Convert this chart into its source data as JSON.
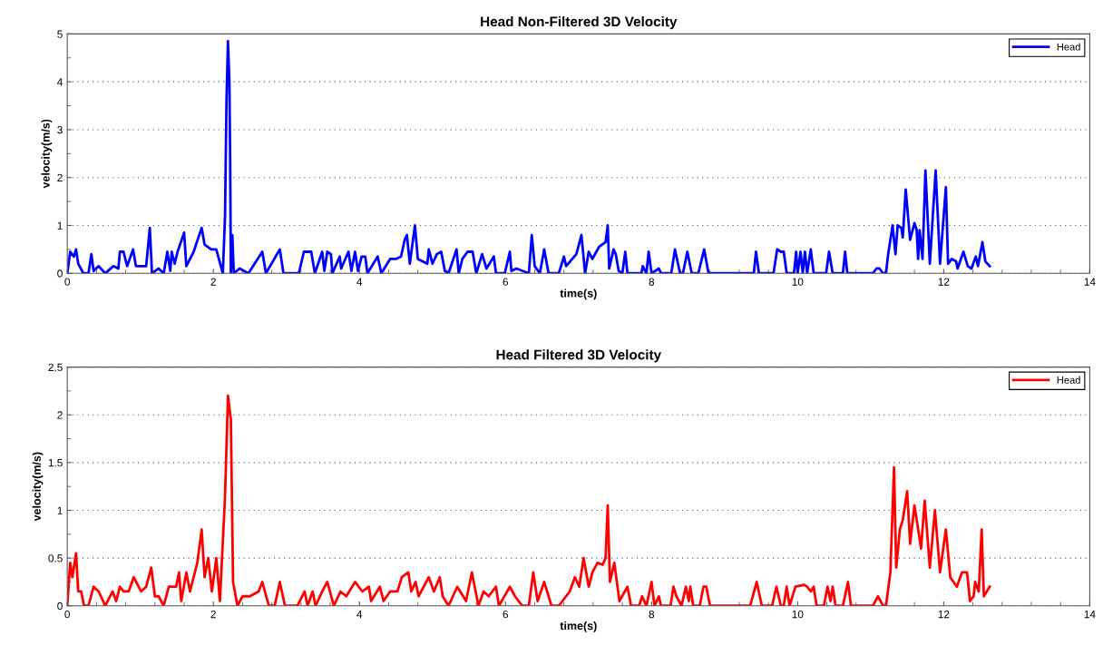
{
  "chart_data": [
    {
      "type": "line",
      "title": "Head Non-Filtered 3D Velocity",
      "xlabel": "time(s)",
      "ylabel": "velocity(m/s)",
      "grid": "y",
      "legend": "top right",
      "line_style": "solid",
      "marker": "none",
      "xlim": [
        0,
        14
      ],
      "ylim": [
        0,
        5
      ],
      "xticks": [
        0,
        {
          "value": 0.4,
          "label": null
        },
        {
          "value": 0.8,
          "label": null
        },
        {
          "value": 1.2,
          "label": null
        },
        {
          "value": 1.6,
          "label": null
        },
        2,
        {
          "value": 2.4,
          "label": null
        },
        {
          "value": 2.8,
          "label": null
        },
        {
          "value": 3.2,
          "label": null
        },
        {
          "value": 3.6,
          "label": null
        },
        4,
        {
          "value": 4.4,
          "label": null
        },
        {
          "value": 4.8,
          "label": null
        },
        {
          "value": 5.2,
          "label": null
        },
        {
          "value": 5.6,
          "label": null
        },
        6,
        {
          "value": 6.4,
          "label": null
        },
        {
          "value": 6.8,
          "label": null
        },
        {
          "value": 7.2,
          "label": null
        },
        {
          "value": 7.6,
          "label": null
        },
        8,
        {
          "value": 8.4,
          "label": null
        },
        {
          "value": 8.8,
          "label": null
        },
        {
          "value": 9.2,
          "label": null
        },
        {
          "value": 9.6,
          "label": null
        },
        10,
        {
          "value": 10.4,
          "label": null
        },
        {
          "value": 10.8,
          "label": null
        },
        {
          "value": 11.2,
          "label": null
        },
        {
          "value": 11.6,
          "label": null
        },
        12,
        {
          "value": 12.4,
          "label": null
        },
        {
          "value": 12.8,
          "label": null
        },
        {
          "value": 13.2,
          "label": null
        },
        {
          "value": 13.6,
          "label": null
        },
        14
      ],
      "yticks": [
        0,
        {
          "value": 0.5,
          "label": null
        },
        1,
        {
          "value": 1.5,
          "label": null
        },
        2,
        {
          "value": 2.5,
          "label": null
        },
        3,
        {
          "value": 3.5,
          "label": null
        },
        4,
        {
          "value": 4.5,
          "label": null
        },
        5
      ],
      "series": [
        {
          "name": "Head",
          "color": "#0000ff",
          "x": [
            0,
            0.04,
            0.09,
            0.12,
            0.15,
            0.22,
            0.29,
            0.33,
            0.36,
            0.43,
            0.52,
            0.63,
            0.7,
            0.72,
            0.77,
            0.82,
            0.9,
            0.94,
            1.08,
            1.13,
            1.16,
            1.25,
            1.32,
            1.37,
            1.41,
            1.43,
            1.47,
            1.51,
            1.6,
            1.63,
            1.73,
            1.84,
            1.88,
            1.97,
            2.04,
            2.13,
            2.16,
            2.18,
            2.2,
            2.22,
            2.23,
            2.24,
            2.26,
            2.28,
            2.36,
            2.48,
            2.67,
            2.72,
            2.91,
            2.96,
            3.17,
            3.24,
            3.34,
            3.39,
            3.49,
            3.52,
            3.56,
            3.61,
            3.63,
            3.73,
            3.75,
            3.85,
            3.89,
            3.94,
            3.98,
            4.03,
            4.08,
            4.11,
            4.25,
            4.3,
            4.42,
            4.5,
            4.57,
            4.62,
            4.65,
            4.69,
            4.76,
            4.8,
            4.93,
            4.95,
            5.0,
            5.06,
            5.12,
            5.17,
            5.22,
            5.33,
            5.36,
            5.41,
            5.48,
            5.55,
            5.6,
            5.68,
            5.74,
            5.84,
            5.87,
            5.99,
            6.06,
            6.08,
            6.15,
            6.32,
            6.36,
            6.4,
            6.47,
            6.53,
            6.59,
            6.73,
            6.8,
            6.83,
            6.97,
            7.04,
            7.09,
            7.14,
            7.19,
            7.28,
            7.37,
            7.4,
            7.42,
            7.48,
            7.51,
            7.55,
            7.6,
            7.64,
            7.67,
            7.86,
            7.88,
            7.93,
            7.96,
            8.0,
            8.1,
            8.13,
            8.27,
            8.32,
            8.39,
            8.43,
            8.49,
            8.55,
            8.64,
            8.72,
            8.78,
            9.4,
            9.43,
            9.47,
            9.67,
            9.72,
            9.77,
            9.81,
            9.85,
            9.95,
            9.98,
            10.0,
            10.04,
            10.07,
            10.1,
            10.13,
            10.18,
            10.22,
            10.39,
            10.43,
            10.48,
            10.62,
            10.65,
            10.68,
            11.03,
            11.08,
            11.12,
            11.17,
            11.21,
            11.24,
            11.3,
            11.34,
            11.37,
            11.42,
            11.44,
            11.48,
            11.54,
            11.6,
            11.63,
            11.65,
            11.67,
            11.71,
            11.75,
            11.81,
            11.89,
            11.95,
            12.03,
            12.06,
            12.11,
            12.17,
            12.19,
            12.27,
            12.33,
            12.38,
            12.44,
            12.47,
            12.53,
            12.57,
            12.63
          ],
          "values": [
            0,
            0.45,
            0.35,
            0.5,
            0.2,
            0,
            0,
            0.4,
            0.05,
            0.15,
            0,
            0.15,
            0.1,
            0.45,
            0.45,
            0.15,
            0.5,
            0.15,
            0.15,
            0.95,
            0,
            0.1,
            0,
            0.45,
            0.05,
            0.45,
            0.2,
            0.45,
            0.85,
            0.15,
            0.45,
            0.95,
            0.6,
            0.5,
            0.5,
            0,
            1.2,
            3.6,
            4.85,
            4.0,
            2.4,
            0,
            0.8,
            0,
            0.1,
            0,
            0.45,
            0,
            0.5,
            0,
            0,
            0.45,
            0.45,
            0,
            0.45,
            0.05,
            0.45,
            0.4,
            0,
            0.35,
            0.1,
            0.45,
            0.05,
            0.45,
            0.05,
            0.35,
            0.35,
            0,
            0.35,
            0,
            0.3,
            0.3,
            0.35,
            0.7,
            0.8,
            0.2,
            1.0,
            0.3,
            0.2,
            0.5,
            0.2,
            0.4,
            0.45,
            0.05,
            0,
            0.5,
            0,
            0.3,
            0.45,
            0.45,
            0,
            0.4,
            0.1,
            0.35,
            0,
            0,
            0.45,
            0.05,
            0.1,
            0,
            0.8,
            0.15,
            0,
            0.5,
            0,
            0,
            0.35,
            0.15,
            0.4,
            0.8,
            0,
            0.45,
            0.3,
            0.55,
            0.65,
            1.0,
            0.1,
            0.5,
            0.4,
            0.05,
            0,
            0.45,
            0,
            0,
            0.15,
            0,
            0.45,
            0,
            0.1,
            0,
            0,
            0.5,
            0,
            0,
            0.45,
            0,
            0,
            0.5,
            0,
            0,
            0.45,
            0,
            0,
            0.5,
            0.45,
            0.45,
            0,
            0,
            0.45,
            0,
            0.45,
            0,
            0.45,
            0,
            0.5,
            0,
            0,
            0.45,
            0,
            0,
            0.45,
            0,
            0,
            0.1,
            0.1,
            0,
            0,
            0.4,
            1.0,
            0.4,
            1.0,
            0.95,
            0.75,
            1.75,
            0.7,
            1.05,
            0.9,
            0.3,
            0.9,
            0.3,
            2.15,
            0.2,
            2.15,
            0.2,
            1.8,
            0.2,
            0.3,
            0.25,
            0.1,
            0.45,
            0.15,
            0.1,
            0.35,
            0.15,
            0.65,
            0.25,
            0.15
          ]
        }
      ]
    },
    {
      "type": "line",
      "title": "Head Filtered 3D Velocity",
      "xlabel": "time(s)",
      "ylabel": "velocity(m/s)",
      "grid": "y",
      "legend": "top right",
      "line_style": "solid",
      "marker": "none",
      "xlim": [
        0,
        14
      ],
      "ylim": [
        0,
        2.5
      ],
      "xticks": [
        0,
        {
          "value": 0.4,
          "label": null
        },
        {
          "value": 0.8,
          "label": null
        },
        {
          "value": 1.2,
          "label": null
        },
        {
          "value": 1.6,
          "label": null
        },
        2,
        {
          "value": 2.4,
          "label": null
        },
        {
          "value": 2.8,
          "label": null
        },
        {
          "value": 3.2,
          "label": null
        },
        {
          "value": 3.6,
          "label": null
        },
        4,
        {
          "value": 4.4,
          "label": null
        },
        {
          "value": 4.8,
          "label": null
        },
        {
          "value": 5.2,
          "label": null
        },
        {
          "value": 5.6,
          "label": null
        },
        6,
        {
          "value": 6.4,
          "label": null
        },
        {
          "value": 6.8,
          "label": null
        },
        {
          "value": 7.2,
          "label": null
        },
        {
          "value": 7.6,
          "label": null
        },
        8,
        {
          "value": 8.4,
          "label": null
        },
        {
          "value": 8.8,
          "label": null
        },
        {
          "value": 9.2,
          "label": null
        },
        {
          "value": 9.6,
          "label": null
        },
        10,
        {
          "value": 10.4,
          "label": null
        },
        {
          "value": 10.8,
          "label": null
        },
        {
          "value": 11.2,
          "label": null
        },
        {
          "value": 11.6,
          "label": null
        },
        12,
        {
          "value": 12.4,
          "label": null
        },
        {
          "value": 12.8,
          "label": null
        },
        {
          "value": 13.2,
          "label": null
        },
        {
          "value": 13.6,
          "label": null
        },
        14
      ],
      "yticks": [
        0,
        {
          "value": 0.25,
          "label": null
        },
        0.5,
        {
          "value": 0.75,
          "label": null
        },
        1,
        {
          "value": 1.25,
          "label": null
        },
        1.5,
        {
          "value": 1.75,
          "label": null
        },
        2,
        {
          "value": 2.25,
          "label": null
        },
        2.5
      ],
      "series": [
        {
          "name": "Head",
          "color": "#ff0000",
          "x": [
            0,
            0.04,
            0.07,
            0.12,
            0.15,
            0.19,
            0.23,
            0.29,
            0.36,
            0.43,
            0.52,
            0.62,
            0.67,
            0.72,
            0.77,
            0.84,
            0.91,
            1.01,
            1.08,
            1.15,
            1.2,
            1.25,
            1.32,
            1.39,
            1.49,
            1.53,
            1.56,
            1.63,
            1.68,
            1.78,
            1.84,
            1.88,
            1.93,
            1.98,
            2.04,
            2.09,
            2.16,
            2.2,
            2.24,
            2.27,
            2.33,
            2.4,
            2.5,
            2.62,
            2.67,
            2.76,
            2.84,
            2.91,
            2.98,
            3.15,
            3.25,
            3.29,
            3.36,
            3.4,
            3.49,
            3.56,
            3.65,
            3.74,
            3.82,
            3.94,
            4.04,
            4.13,
            4.16,
            4.28,
            4.33,
            4.42,
            4.52,
            4.58,
            4.67,
            4.71,
            4.77,
            4.81,
            4.95,
            5.02,
            5.1,
            5.14,
            5.22,
            5.34,
            5.46,
            5.54,
            5.63,
            5.7,
            5.77,
            5.87,
            5.91,
            6.06,
            6.13,
            6.23,
            6.32,
            6.38,
            6.44,
            6.53,
            6.63,
            6.73,
            6.88,
            6.95,
            7.01,
            7.07,
            7.14,
            7.19,
            7.26,
            7.33,
            7.37,
            7.4,
            7.43,
            7.49,
            7.56,
            7.67,
            7.72,
            7.83,
            7.87,
            7.93,
            8.0,
            8.04,
            8.1,
            8.13,
            8.26,
            8.3,
            8.34,
            8.41,
            8.47,
            8.51,
            8.53,
            8.57,
            8.66,
            8.71,
            8.75,
            8.8,
            9.35,
            9.44,
            9.51,
            9.65,
            9.71,
            9.77,
            9.81,
            9.85,
            9.89,
            9.97,
            10.09,
            10.13,
            10.18,
            10.22,
            10.26,
            10.36,
            10.41,
            10.45,
            10.48,
            10.52,
            10.62,
            10.69,
            10.73,
            11.03,
            11.1,
            11.17,
            11.21,
            11.27,
            11.32,
            11.35,
            11.4,
            11.44,
            11.5,
            11.54,
            11.6,
            11.65,
            11.69,
            11.74,
            11.81,
            11.88,
            11.95,
            12.03,
            12.09,
            12.18,
            12.25,
            12.32,
            12.36,
            12.41,
            12.43,
            12.48,
            12.52,
            12.55,
            12.63
          ],
          "values": [
            0,
            0.45,
            0.3,
            0.55,
            0.15,
            0.15,
            0,
            0,
            0.2,
            0.15,
            0,
            0.15,
            0.05,
            0.2,
            0.15,
            0.15,
            0.3,
            0.15,
            0.2,
            0.4,
            0.1,
            0.1,
            0,
            0.2,
            0.2,
            0.35,
            0.05,
            0.35,
            0.15,
            0.45,
            0.8,
            0.3,
            0.5,
            0.15,
            0.5,
            0.05,
            1.15,
            2.2,
            1.95,
            0.25,
            0,
            0.1,
            0.1,
            0.15,
            0.25,
            0,
            0,
            0.25,
            0,
            0,
            0.15,
            0,
            0.15,
            0,
            0.15,
            0.25,
            0,
            0.15,
            0.1,
            0.25,
            0.15,
            0.2,
            0.05,
            0.2,
            0.05,
            0.15,
            0.15,
            0.3,
            0.35,
            0.15,
            0.25,
            0.1,
            0.3,
            0.15,
            0.3,
            0.1,
            0,
            0.2,
            0.05,
            0.35,
            0,
            0.15,
            0.1,
            0.2,
            0,
            0.2,
            0.1,
            0,
            0,
            0.35,
            0.05,
            0.25,
            0,
            0,
            0.15,
            0.3,
            0.2,
            0.5,
            0.2,
            0.35,
            0.45,
            0.43,
            0.5,
            1.05,
            0.25,
            0.45,
            0.05,
            0.2,
            0,
            0,
            0.1,
            0,
            0.25,
            0,
            0.1,
            0,
            0,
            0.2,
            0.1,
            0,
            0.2,
            0.05,
            0.2,
            0,
            0,
            0.2,
            0.2,
            0,
            0,
            0.25,
            0,
            0,
            0.2,
            0,
            0,
            0.2,
            0,
            0.2,
            0.22,
            0.2,
            0.15,
            0.2,
            0,
            0,
            0.2,
            0.05,
            0.2,
            0,
            0,
            0.25,
            0,
            0,
            0.1,
            0,
            0,
            0.35,
            1.45,
            0.4,
            0.8,
            0.9,
            1.2,
            0.65,
            1.05,
            0.8,
            0.6,
            1.1,
            0.4,
            1.0,
            0.35,
            0.8,
            0.3,
            0.2,
            0.35,
            0.35,
            0.05,
            0.1,
            0.25,
            0.15,
            0.8,
            0.1,
            0.2
          ]
        }
      ]
    }
  ]
}
